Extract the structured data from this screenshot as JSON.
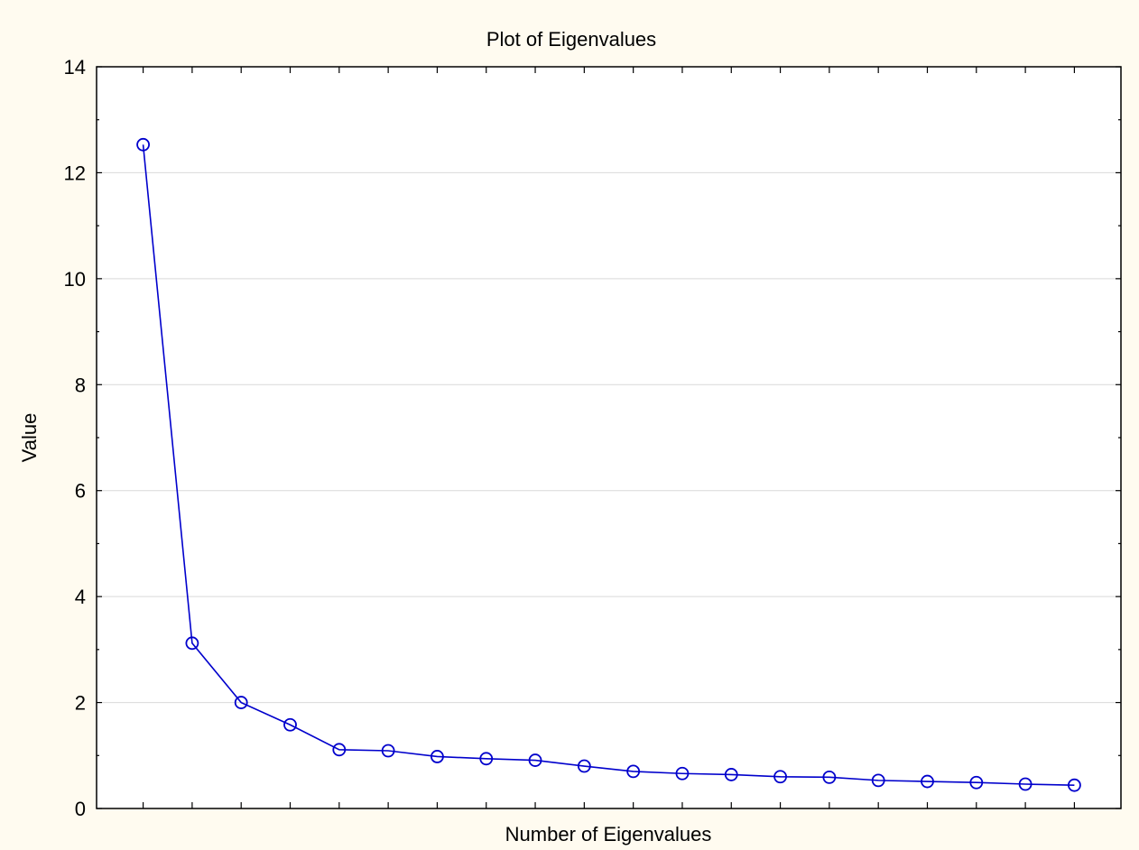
{
  "chart_data": {
    "type": "line",
    "title": "Plot of Eigenvalues",
    "xlabel": "Number of Eigenvalues",
    "ylabel": "Value",
    "ylim": [
      0,
      14
    ],
    "yticks": [
      0,
      2,
      4,
      6,
      8,
      10,
      12,
      14
    ],
    "grid": true,
    "x": [
      1,
      2,
      3,
      4,
      5,
      6,
      7,
      8,
      9,
      10,
      11,
      12,
      13,
      14,
      15,
      16,
      17,
      18,
      19,
      20
    ],
    "series": [
      {
        "color": "#0000cc",
        "marker": "open-circle",
        "values": [
          12.53,
          3.12,
          2.0,
          1.58,
          1.11,
          1.09,
          0.98,
          0.94,
          0.91,
          0.8,
          0.7,
          0.66,
          0.64,
          0.6,
          0.59,
          0.53,
          0.51,
          0.49,
          0.46,
          0.44
        ]
      }
    ],
    "colors": {
      "background": "#fffbf0",
      "plot_area": "#ffffff",
      "gridline": "#d9d9d9",
      "series": "#0000cc"
    }
  }
}
